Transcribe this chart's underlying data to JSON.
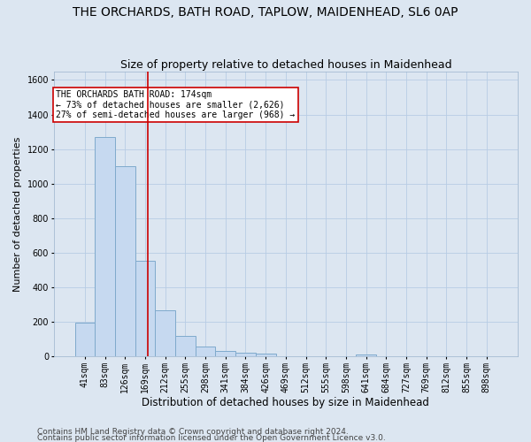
{
  "title": "THE ORCHARDS, BATH ROAD, TAPLOW, MAIDENHEAD, SL6 0AP",
  "subtitle": "Size of property relative to detached houses in Maidenhead",
  "xlabel": "Distribution of detached houses by size in Maidenhead",
  "ylabel": "Number of detached properties",
  "footer1": "Contains HM Land Registry data © Crown copyright and database right 2024.",
  "footer2": "Contains public sector information licensed under the Open Government Licence v3.0.",
  "bar_labels": [
    "41sqm",
    "83sqm",
    "126sqm",
    "169sqm",
    "212sqm",
    "255sqm",
    "298sqm",
    "341sqm",
    "384sqm",
    "426sqm",
    "469sqm",
    "512sqm",
    "555sqm",
    "598sqm",
    "641sqm",
    "684sqm",
    "727sqm",
    "769sqm",
    "812sqm",
    "855sqm",
    "898sqm"
  ],
  "bar_values": [
    197,
    1270,
    1100,
    555,
    265,
    118,
    57,
    32,
    22,
    18,
    0,
    0,
    0,
    0,
    13,
    0,
    0,
    0,
    0,
    0,
    0
  ],
  "bar_color": "#c6d9f0",
  "bar_edge_color": "#7faacc",
  "background_color": "#dce6f1",
  "plot_bg_color": "#dce6f1",
  "grid_color": "#b8cce4",
  "vline_color": "#cc0000",
  "annotation_box_text": [
    "THE ORCHARDS BATH ROAD: 174sqm",
    "← 73% of detached houses are smaller (2,626)",
    "27% of semi-detached houses are larger (968) →"
  ],
  "annotation_box_color": "#ffffff",
  "annotation_box_border": "#cc0000",
  "ylim": [
    0,
    1650
  ],
  "yticks": [
    0,
    200,
    400,
    600,
    800,
    1000,
    1200,
    1400,
    1600
  ],
  "title_fontsize": 10,
  "subtitle_fontsize": 9,
  "xlabel_fontsize": 8.5,
  "ylabel_fontsize": 8,
  "tick_fontsize": 7,
  "annotation_fontsize": 7,
  "footer_fontsize": 6.5
}
